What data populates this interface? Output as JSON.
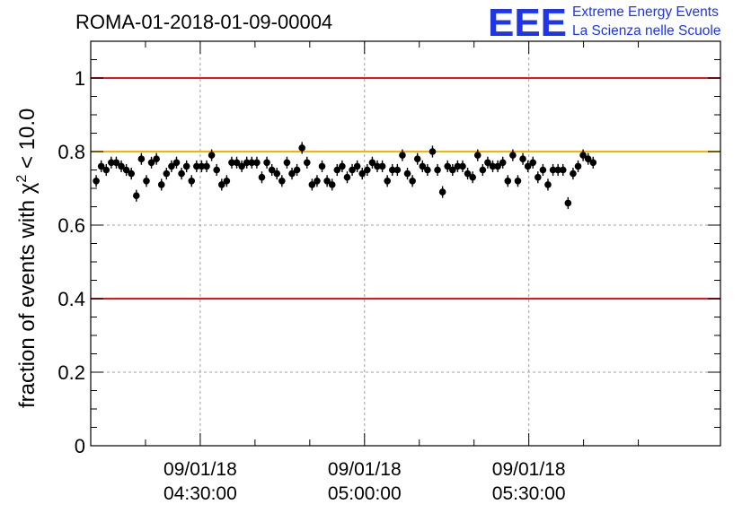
{
  "chart_data": {
    "type": "scatter",
    "title": "ROMA-01-2018-01-09-00004",
    "ylabel": {
      "prefix": "fraction of events with ",
      "symbol": "χ",
      "superscript": "2",
      "suffix": " < 10.0"
    },
    "xlabel": "",
    "ylim": [
      0,
      1.1
    ],
    "xlim": [
      "2018-01-09 04:10:00",
      "2018-01-09 06:05:00"
    ],
    "yticks": [
      "0",
      "0.2",
      "0.4",
      "0.6",
      "0.8",
      "1"
    ],
    "xticks": [
      {
        "x": "2018-01-09 04:30:00",
        "date": "09/01/18",
        "time": "04:30:00"
      },
      {
        "x": "2018-01-09 05:00:00",
        "date": "09/01/18",
        "time": "05:00:00"
      },
      {
        "x": "2018-01-09 05:30:00",
        "date": "09/01/18",
        "time": "05:30:00"
      }
    ],
    "grid": true,
    "reference_lines": [
      {
        "y": 1.0,
        "color": "#e8141c"
      },
      {
        "y": 0.8,
        "color": "#f5b400"
      },
      {
        "y": 0.4,
        "color": "#e8141c"
      }
    ],
    "series": [
      {
        "marker_color": "#000000",
        "x_start": "2018-01-09 04:11:00",
        "x_step_seconds": 55,
        "values": [
          0.72,
          0.76,
          0.75,
          0.77,
          0.77,
          0.76,
          0.75,
          0.74,
          0.68,
          0.78,
          0.72,
          0.77,
          0.78,
          0.71,
          0.74,
          0.76,
          0.77,
          0.74,
          0.76,
          0.72,
          0.76,
          0.76,
          0.76,
          0.79,
          0.75,
          0.71,
          0.72,
          0.77,
          0.77,
          0.76,
          0.77,
          0.77,
          0.77,
          0.73,
          0.77,
          0.75,
          0.74,
          0.72,
          0.77,
          0.74,
          0.75,
          0.81,
          0.77,
          0.71,
          0.72,
          0.76,
          0.72,
          0.71,
          0.75,
          0.76,
          0.73,
          0.75,
          0.76,
          0.74,
          0.75,
          0.77,
          0.76,
          0.76,
          0.72,
          0.75,
          0.75,
          0.79,
          0.74,
          0.72,
          0.78,
          0.76,
          0.75,
          0.8,
          0.75,
          0.69,
          0.76,
          0.75,
          0.76,
          0.76,
          0.74,
          0.73,
          0.79,
          0.75,
          0.77,
          0.76,
          0.76,
          0.77,
          0.72,
          0.79,
          0.72,
          0.78,
          0.76,
          0.77,
          0.73,
          0.75,
          0.71,
          0.75,
          0.75,
          0.75,
          0.66,
          0.74,
          0.76,
          0.79,
          0.78,
          0.77
        ],
        "error": 0.016
      }
    ],
    "colors": {
      "marker": "#000000",
      "grid": "#a0a0a0",
      "frame": "#000000",
      "logo": "#1f35e8"
    }
  },
  "logo": {
    "mark": "EEE",
    "line1": "Extreme Energy Events",
    "line2": "La Scienza nelle Scuole"
  }
}
